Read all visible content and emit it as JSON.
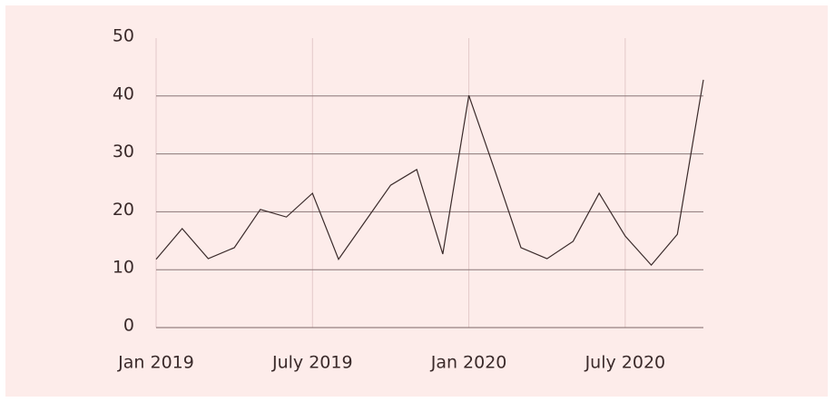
{
  "chart_data": {
    "type": "line",
    "x": [
      "2019-01",
      "2019-02",
      "2019-03",
      "2019-04",
      "2019-05",
      "2019-06",
      "2019-07",
      "2019-08",
      "2019-09",
      "2019-10",
      "2019-11",
      "2019-12",
      "2020-01",
      "2020-02",
      "2020-03",
      "2020-04",
      "2020-05",
      "2020-06",
      "2020-07",
      "2020-08",
      "2020-09",
      "2020-10"
    ],
    "series": [
      {
        "color": "#3a2a2a",
        "values": [
          11.8,
          17.1,
          11.9,
          13.8,
          20.4,
          19.1,
          23.2,
          11.8,
          18.2,
          24.6,
          27.3,
          12.7,
          40.1,
          27.1,
          13.8,
          11.9,
          14.9,
          23.2,
          15.8,
          10.8,
          16.1,
          42.8
        ]
      }
    ],
    "xlim": [
      "2019-01",
      "2020-10"
    ],
    "xticks": [
      {
        "value": "2019-01",
        "label": "Jan 2019"
      },
      {
        "value": "2019-07",
        "label": "July 2019"
      },
      {
        "value": "2020-01",
        "label": "Jan 2020"
      },
      {
        "value": "2020-07",
        "label": "July 2020"
      }
    ],
    "ylim": [
      0,
      50
    ],
    "yticks": [
      0,
      10,
      20,
      30,
      40,
      50
    ],
    "grid": true
  }
}
